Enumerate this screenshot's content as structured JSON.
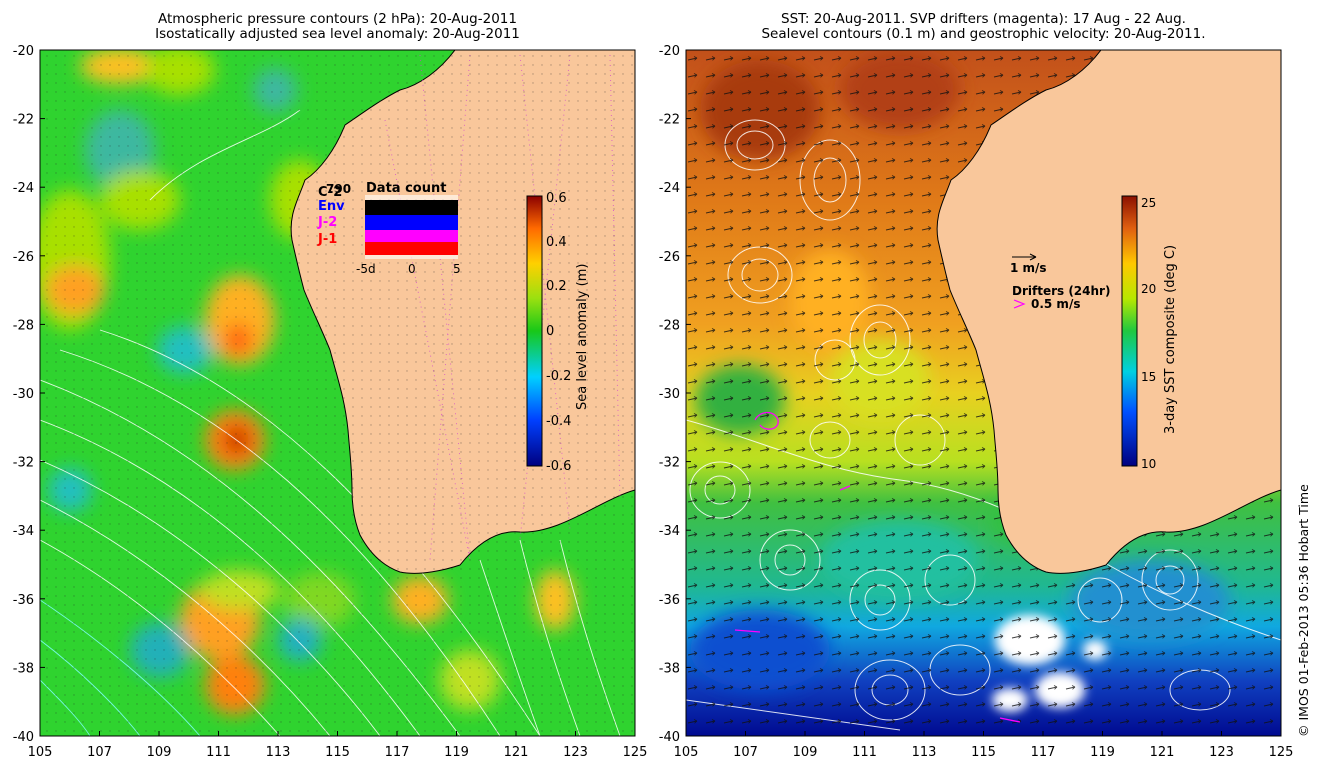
{
  "left_panel": {
    "title_line1": "Atmospheric pressure contours (2 hPa): 20-Aug-2011",
    "title_line2": "Isostatically adjusted sea level anomaly: 20-Aug-2011",
    "colorbar_label": "Sea level anomaly (m)",
    "colorbar_ticks": [
      "0.6",
      "0.4",
      "0.2",
      "0",
      "-0.2",
      "-0.4",
      "-0.6"
    ],
    "inset_title": "Data count",
    "inset_legend": [
      {
        "label": "C-2",
        "color": "#000000"
      },
      {
        "label": "Env",
        "color": "#0000ff"
      },
      {
        "label": "J-2",
        "color": "#ff00ff"
      },
      {
        "label": "J-1",
        "color": "#ff0000"
      }
    ],
    "inset_overlay_text": "790",
    "inset_xticks": [
      "-5d",
      "0",
      "5"
    ]
  },
  "right_panel": {
    "title_line1": "SST: 20-Aug-2011. SVP drifters (magenta): 17 Aug - 22 Aug.",
    "title_line2": "Sealevel contours (0.1 m) and geostrophic velocity: 20-Aug-2011.",
    "colorbar_label": "3-day SST composite (deg C)",
    "colorbar_ticks": [
      "25",
      "20",
      "15",
      "10"
    ],
    "scale_arrow_label": "1 m/s",
    "drifters_label": "Drifters (24hr)",
    "drifters_speed_label": "0.5 m/s"
  },
  "axes": {
    "lat_ticks": [
      "-20",
      "-22",
      "-24",
      "-26",
      "-28",
      "-30",
      "-32",
      "-34",
      "-36",
      "-38",
      "-40"
    ],
    "lon_ticks": [
      "105",
      "107",
      "109",
      "111",
      "113",
      "115",
      "117",
      "119",
      "121",
      "123",
      "125"
    ]
  },
  "copyright": "© IMOS 01-Feb-2013 05:36 Hobart Time",
  "colors": {
    "land": "#f9c79b",
    "ocean_green": "#2fd32f",
    "sst_warm": "#d2691e",
    "magenta": "#ff00ff"
  }
}
